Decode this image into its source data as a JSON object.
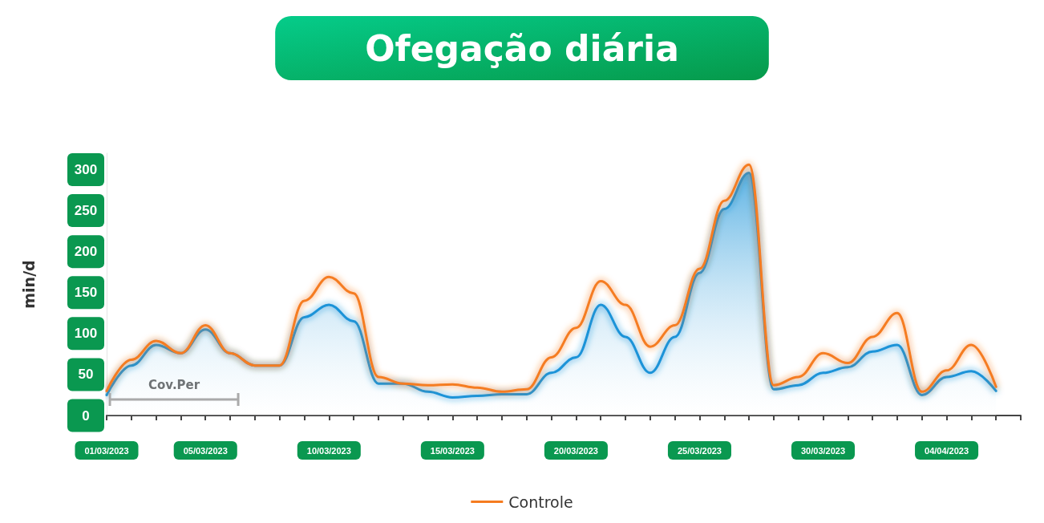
{
  "chart_data": {
    "type": "line",
    "title": "Ofegação diária",
    "ylabel": "min/d",
    "categories": [
      "01/03/2023",
      null,
      null,
      null,
      "05/03/2023",
      null,
      null,
      null,
      null,
      "10/03/2023",
      null,
      null,
      null,
      null,
      "15/03/2023",
      null,
      null,
      null,
      null,
      "20/03/2023",
      null,
      null,
      null,
      null,
      "25/03/2023",
      null,
      null,
      null,
      null,
      "30/03/2023",
      null,
      null,
      null,
      null,
      "04/04/2023",
      null,
      null,
      null
    ],
    "series": [
      {
        "type": "area",
        "color": "#1a93d8",
        "values": [
          25,
          61,
          86,
          76,
          105,
          76,
          61,
          61,
          120,
          135,
          115,
          39,
          39,
          29,
          22,
          24,
          26,
          26,
          52,
          71,
          135,
          96,
          52,
          96,
          174,
          252,
          296,
          32,
          37,
          52,
          59,
          78,
          86,
          25,
          47,
          54,
          30,
          null
        ]
      },
      {
        "name": "Controle",
        "type": "line",
        "color": "#f57c20",
        "values": [
          30,
          68,
          91,
          76,
          110,
          76,
          61,
          61,
          140,
          169,
          149,
          47,
          39,
          37,
          38,
          34,
          29,
          32,
          71,
          107,
          164,
          135,
          84,
          110,
          179,
          262,
          306,
          37,
          47,
          76,
          64,
          96,
          125,
          29,
          55,
          86,
          35,
          null
        ]
      }
    ],
    "ylim": [
      0,
      320
    ],
    "yticks": [
      0,
      50,
      100,
      150,
      200,
      250,
      300
    ],
    "annotations": [
      "Cov.Per"
    ],
    "grid": false,
    "legend": "bottom",
    "marker": "none",
    "line_style": "solid"
  }
}
